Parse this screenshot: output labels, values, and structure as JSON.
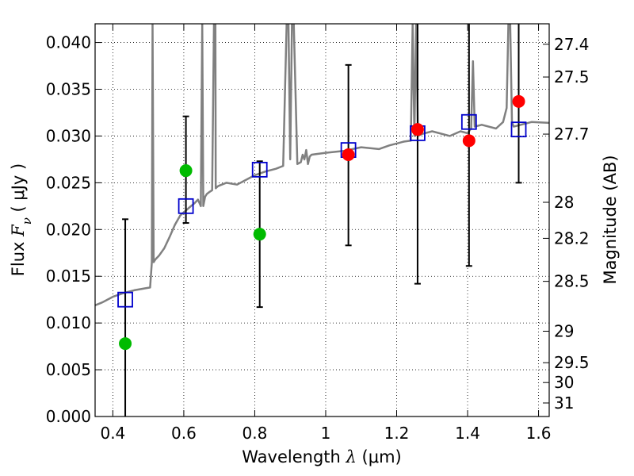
{
  "chart_data": {
    "type": "scatter",
    "xlabel": {
      "text": "Wavelength",
      "symbol": "λ",
      "unit": "(μm)"
    },
    "ylabel": {
      "text": "Flux",
      "symbol": "F",
      "subscript": "ν",
      "unit": "( μJy )"
    },
    "y2label": "Magnitude (AB)",
    "xlim": [
      0.35,
      1.63
    ],
    "ylim": [
      0.0,
      0.042
    ],
    "grid": true,
    "x_ticks": [
      {
        "value": 0.4,
        "label": "0.4"
      },
      {
        "value": 0.6,
        "label": "0.6"
      },
      {
        "value": 0.8,
        "label": "0.8"
      },
      {
        "value": 1.0,
        "label": "1"
      },
      {
        "value": 1.2,
        "label": "1.2"
      },
      {
        "value": 1.4,
        "label": "1.4"
      },
      {
        "value": 1.6,
        "label": "1.6"
      }
    ],
    "y_ticks": [
      {
        "value": 0.0,
        "label": "0.000"
      },
      {
        "value": 0.005,
        "label": "0.005"
      },
      {
        "value": 0.01,
        "label": "0.010"
      },
      {
        "value": 0.015,
        "label": "0.015"
      },
      {
        "value": 0.02,
        "label": "0.020"
      },
      {
        "value": 0.025,
        "label": "0.025"
      },
      {
        "value": 0.03,
        "label": "0.030"
      },
      {
        "value": 0.035,
        "label": "0.035"
      },
      {
        "value": 0.04,
        "label": "0.040"
      }
    ],
    "y2_ticks": [
      {
        "mag": 27.4,
        "label": "27.4"
      },
      {
        "mag": 27.5,
        "label": "27.5"
      },
      {
        "mag": 27.7,
        "label": "27.7"
      },
      {
        "mag": 28,
        "label": "28"
      },
      {
        "mag": 28.2,
        "label": "28.2"
      },
      {
        "mag": 28.5,
        "label": "28.5"
      },
      {
        "mag": 29,
        "label": "29"
      },
      {
        "mag": 29.5,
        "label": "29.5"
      },
      {
        "mag": 30,
        "label": "30"
      },
      {
        "mag": 31,
        "label": "31"
      }
    ],
    "colors": {
      "model": "#808080",
      "observed_detection": "#ff0000",
      "observed_other": "#00bb00",
      "model_photometry": "#0000cc",
      "errorbar": "#000000"
    },
    "model_spectrum": {
      "x": [
        0.35,
        0.37,
        0.4,
        0.43,
        0.46,
        0.49,
        0.505,
        0.51,
        0.512,
        0.515,
        0.52,
        0.53,
        0.545,
        0.56,
        0.575,
        0.59,
        0.605,
        0.62,
        0.63,
        0.64,
        0.648,
        0.652,
        0.655,
        0.66,
        0.665,
        0.672,
        0.68,
        0.685,
        0.689,
        0.69,
        0.695,
        0.7,
        0.72,
        0.75,
        0.77,
        0.8,
        0.83,
        0.86,
        0.88,
        0.89,
        0.895,
        0.9,
        0.905,
        0.91,
        0.92,
        0.93,
        0.935,
        0.94,
        0.945,
        0.95,
        0.955,
        0.96,
        1.0,
        1.05,
        1.1,
        1.15,
        1.18,
        1.2,
        1.22,
        1.24,
        1.245,
        1.25,
        1.255,
        1.26,
        1.27,
        1.3,
        1.35,
        1.38,
        1.4,
        1.41,
        1.415,
        1.42,
        1.44,
        1.48,
        1.5,
        1.51,
        1.515,
        1.52,
        1.525,
        1.53,
        1.55,
        1.58,
        1.63
      ],
      "y": [
        0.0119,
        0.0122,
        0.0128,
        0.0132,
        0.0135,
        0.0137,
        0.0138,
        0.0165,
        0.042,
        0.0165,
        0.0168,
        0.0172,
        0.018,
        0.0192,
        0.0205,
        0.0215,
        0.022,
        0.0225,
        0.0228,
        0.0232,
        0.0225,
        0.042,
        0.0225,
        0.0235,
        0.0238,
        0.024,
        0.0242,
        0.042,
        0.042,
        0.0244,
        0.0246,
        0.0247,
        0.025,
        0.0248,
        0.0252,
        0.0258,
        0.0262,
        0.0265,
        0.0268,
        0.042,
        0.042,
        0.0275,
        0.042,
        0.042,
        0.027,
        0.0272,
        0.028,
        0.0275,
        0.0285,
        0.027,
        0.0278,
        0.028,
        0.0282,
        0.0284,
        0.0288,
        0.0286,
        0.029,
        0.0292,
        0.0294,
        0.0295,
        0.042,
        0.03,
        0.042,
        0.03,
        0.0302,
        0.0305,
        0.03,
        0.0305,
        0.0303,
        0.0308,
        0.038,
        0.031,
        0.0312,
        0.0308,
        0.0315,
        0.033,
        0.042,
        0.042,
        0.0315,
        0.031,
        0.0312,
        0.0315,
        0.0314
      ]
    },
    "observed_photometry": [
      {
        "x": 0.435,
        "y": 0.0078,
        "err_low": 0.0,
        "err_high": 0.0211,
        "color": "observed_other"
      },
      {
        "x": 0.606,
        "y": 0.0263,
        "err_low": 0.0207,
        "err_high": 0.0321,
        "color": "observed_other"
      },
      {
        "x": 0.814,
        "y": 0.0195,
        "err_low": 0.0117,
        "err_high": 0.0273,
        "color": "observed_other"
      },
      {
        "x": 1.064,
        "y": 0.028,
        "err_low": 0.0183,
        "err_high": 0.0376,
        "color": "observed_detection"
      },
      {
        "x": 1.259,
        "y": 0.0307,
        "err_low": 0.0142,
        "err_high": 0.042,
        "color": "observed_detection"
      },
      {
        "x": 1.404,
        "y": 0.0295,
        "err_low": 0.0161,
        "err_high": 0.042,
        "color": "observed_detection"
      },
      {
        "x": 1.544,
        "y": 0.0337,
        "err_low": 0.025,
        "err_high": 0.042,
        "color": "observed_detection"
      }
    ],
    "model_photometry": [
      {
        "x": 0.435,
        "y": 0.0125
      },
      {
        "x": 0.606,
        "y": 0.0225
      },
      {
        "x": 0.814,
        "y": 0.0264
      },
      {
        "x": 1.064,
        "y": 0.0285
      },
      {
        "x": 1.259,
        "y": 0.0303
      },
      {
        "x": 1.404,
        "y": 0.0315
      },
      {
        "x": 1.544,
        "y": 0.0307
      }
    ]
  }
}
